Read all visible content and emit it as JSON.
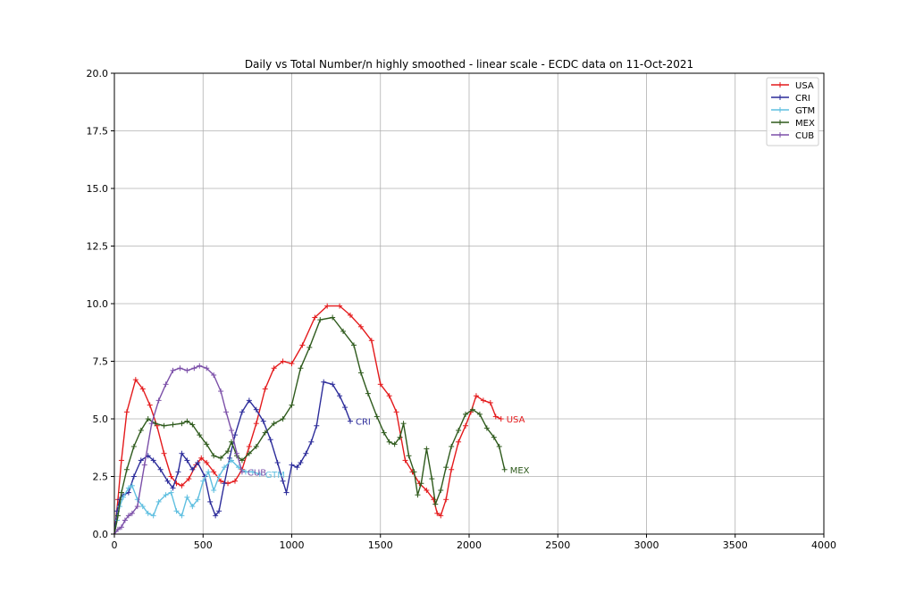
{
  "chart_data": {
    "type": "line",
    "title": "Daily vs Total Number/n highly smoothed - linear scale - ECDC data on 11-Oct-2021",
    "xlabel": "",
    "ylabel": "",
    "xlim": [
      0,
      4000
    ],
    "ylim": [
      0,
      20
    ],
    "xticks": [
      0,
      500,
      1000,
      1500,
      2000,
      2500,
      3000,
      3500,
      4000
    ],
    "yticks": [
      0.0,
      2.5,
      5.0,
      7.5,
      10.0,
      12.5,
      15.0,
      17.5,
      20.0
    ],
    "xtick_labels": [
      "0",
      "500",
      "1000",
      "1500",
      "2000",
      "2500",
      "3000",
      "3500",
      "4000"
    ],
    "ytick_labels": [
      "0.0",
      "2.5",
      "5.0",
      "7.5",
      "10.0",
      "12.5",
      "15.0",
      "17.5",
      "20.0"
    ],
    "grid": true,
    "legend_position": "top-right",
    "series": [
      {
        "name": "USA",
        "color": "#e41a1c",
        "end_label": "USA",
        "points": [
          [
            0,
            0
          ],
          [
            20,
            1.5
          ],
          [
            40,
            3.2
          ],
          [
            70,
            5.3
          ],
          [
            120,
            6.7
          ],
          [
            160,
            6.3
          ],
          [
            200,
            5.6
          ],
          [
            240,
            4.7
          ],
          [
            280,
            3.5
          ],
          [
            320,
            2.5
          ],
          [
            350,
            2.2
          ],
          [
            380,
            2.1
          ],
          [
            420,
            2.4
          ],
          [
            460,
            3.0
          ],
          [
            490,
            3.3
          ],
          [
            520,
            3.1
          ],
          [
            560,
            2.7
          ],
          [
            600,
            2.3
          ],
          [
            640,
            2.2
          ],
          [
            680,
            2.3
          ],
          [
            720,
            2.8
          ],
          [
            760,
            3.8
          ],
          [
            800,
            4.8
          ],
          [
            850,
            6.3
          ],
          [
            900,
            7.2
          ],
          [
            950,
            7.5
          ],
          [
            1000,
            7.4
          ],
          [
            1060,
            8.2
          ],
          [
            1130,
            9.4
          ],
          [
            1200,
            9.9
          ],
          [
            1270,
            9.9
          ],
          [
            1330,
            9.5
          ],
          [
            1390,
            9.0
          ],
          [
            1450,
            8.4
          ],
          [
            1500,
            6.5
          ],
          [
            1550,
            6.0
          ],
          [
            1590,
            5.3
          ],
          [
            1640,
            3.2
          ],
          [
            1680,
            2.7
          ],
          [
            1720,
            2.2
          ],
          [
            1760,
            1.9
          ],
          [
            1800,
            1.5
          ],
          [
            1820,
            0.9
          ],
          [
            1840,
            0.8
          ],
          [
            1870,
            1.5
          ],
          [
            1900,
            2.8
          ],
          [
            1940,
            4.0
          ],
          [
            1980,
            4.7
          ],
          [
            2010,
            5.3
          ],
          [
            2040,
            6.0
          ],
          [
            2080,
            5.8
          ],
          [
            2120,
            5.7
          ],
          [
            2150,
            5.1
          ],
          [
            2180,
            5.0
          ]
        ]
      },
      {
        "name": "CRI",
        "color": "#2c2c9a",
        "end_label": "CRI",
        "points": [
          [
            0,
            0
          ],
          [
            15,
            1.0
          ],
          [
            30,
            1.5
          ],
          [
            50,
            1.7
          ],
          [
            80,
            1.8
          ],
          [
            110,
            2.5
          ],
          [
            150,
            3.2
          ],
          [
            190,
            3.4
          ],
          [
            220,
            3.2
          ],
          [
            260,
            2.8
          ],
          [
            300,
            2.3
          ],
          [
            330,
            2.0
          ],
          [
            360,
            2.7
          ],
          [
            380,
            3.5
          ],
          [
            410,
            3.2
          ],
          [
            440,
            2.8
          ],
          [
            470,
            3.1
          ],
          [
            510,
            2.5
          ],
          [
            540,
            1.4
          ],
          [
            570,
            0.8
          ],
          [
            590,
            1.0
          ],
          [
            620,
            2.2
          ],
          [
            650,
            3.3
          ],
          [
            680,
            4.3
          ],
          [
            720,
            5.3
          ],
          [
            760,
            5.8
          ],
          [
            800,
            5.4
          ],
          [
            840,
            4.9
          ],
          [
            880,
            4.1
          ],
          [
            920,
            3.1
          ],
          [
            950,
            2.3
          ],
          [
            970,
            1.8
          ],
          [
            1000,
            3.0
          ],
          [
            1030,
            2.9
          ],
          [
            1050,
            3.1
          ],
          [
            1080,
            3.5
          ],
          [
            1110,
            4.0
          ],
          [
            1140,
            4.7
          ],
          [
            1180,
            6.6
          ],
          [
            1230,
            6.5
          ],
          [
            1270,
            6.0
          ],
          [
            1300,
            5.5
          ],
          [
            1330,
            4.9
          ]
        ]
      },
      {
        "name": "GTM",
        "color": "#5fbfe0",
        "end_label": "GTM",
        "points": [
          [
            0,
            0
          ],
          [
            15,
            0.6
          ],
          [
            30,
            1.2
          ],
          [
            50,
            1.6
          ],
          [
            80,
            2.0
          ],
          [
            100,
            2.1
          ],
          [
            130,
            1.5
          ],
          [
            160,
            1.2
          ],
          [
            190,
            0.9
          ],
          [
            220,
            0.8
          ],
          [
            250,
            1.4
          ],
          [
            290,
            1.7
          ],
          [
            320,
            1.8
          ],
          [
            350,
            1.0
          ],
          [
            380,
            0.8
          ],
          [
            410,
            1.6
          ],
          [
            440,
            1.2
          ],
          [
            470,
            1.5
          ],
          [
            500,
            2.3
          ],
          [
            530,
            2.7
          ],
          [
            560,
            1.9
          ],
          [
            590,
            2.5
          ],
          [
            620,
            2.9
          ],
          [
            660,
            3.2
          ],
          [
            700,
            2.9
          ],
          [
            740,
            2.7
          ],
          [
            780,
            2.7
          ],
          [
            820,
            2.6
          ]
        ]
      },
      {
        "name": "MEX",
        "color": "#2e5a1c",
        "end_label": "MEX",
        "points": [
          [
            0,
            0
          ],
          [
            20,
            0.8
          ],
          [
            40,
            1.8
          ],
          [
            70,
            2.8
          ],
          [
            110,
            3.8
          ],
          [
            150,
            4.5
          ],
          [
            190,
            5.0
          ],
          [
            230,
            4.8
          ],
          [
            280,
            4.7
          ],
          [
            330,
            4.75
          ],
          [
            380,
            4.8
          ],
          [
            410,
            4.9
          ],
          [
            440,
            4.75
          ],
          [
            480,
            4.3
          ],
          [
            520,
            3.9
          ],
          [
            560,
            3.4
          ],
          [
            600,
            3.3
          ],
          [
            640,
            3.6
          ],
          [
            660,
            4.0
          ],
          [
            690,
            3.4
          ],
          [
            720,
            3.2
          ],
          [
            760,
            3.5
          ],
          [
            800,
            3.8
          ],
          [
            850,
            4.4
          ],
          [
            900,
            4.8
          ],
          [
            950,
            5.0
          ],
          [
            1000,
            5.6
          ],
          [
            1050,
            7.2
          ],
          [
            1100,
            8.1
          ],
          [
            1160,
            9.3
          ],
          [
            1230,
            9.4
          ],
          [
            1290,
            8.8
          ],
          [
            1350,
            8.2
          ],
          [
            1390,
            7.0
          ],
          [
            1430,
            6.1
          ],
          [
            1480,
            5.1
          ],
          [
            1520,
            4.4
          ],
          [
            1550,
            4.0
          ],
          [
            1580,
            3.9
          ],
          [
            1610,
            4.2
          ],
          [
            1630,
            4.8
          ],
          [
            1660,
            3.4
          ],
          [
            1690,
            2.7
          ],
          [
            1710,
            1.7
          ],
          [
            1730,
            2.2
          ],
          [
            1760,
            3.7
          ],
          [
            1790,
            2.4
          ],
          [
            1810,
            1.3
          ],
          [
            1840,
            1.9
          ],
          [
            1870,
            2.9
          ],
          [
            1900,
            3.8
          ],
          [
            1940,
            4.5
          ],
          [
            1980,
            5.2
          ],
          [
            2020,
            5.4
          ],
          [
            2060,
            5.2
          ],
          [
            2100,
            4.6
          ],
          [
            2140,
            4.2
          ],
          [
            2170,
            3.8
          ],
          [
            2200,
            2.8
          ]
        ]
      },
      {
        "name": "CUB",
        "color": "#7b4fa8",
        "end_label": "CUB",
        "points": [
          [
            0,
            0
          ],
          [
            20,
            0.2
          ],
          [
            40,
            0.3
          ],
          [
            60,
            0.6
          ],
          [
            80,
            0.8
          ],
          [
            100,
            0.9
          ],
          [
            130,
            1.2
          ],
          [
            170,
            3.0
          ],
          [
            210,
            4.8
          ],
          [
            250,
            5.8
          ],
          [
            290,
            6.5
          ],
          [
            330,
            7.1
          ],
          [
            370,
            7.2
          ],
          [
            410,
            7.1
          ],
          [
            450,
            7.2
          ],
          [
            480,
            7.3
          ],
          [
            520,
            7.2
          ],
          [
            560,
            6.9
          ],
          [
            600,
            6.2
          ],
          [
            630,
            5.3
          ],
          [
            660,
            4.5
          ],
          [
            690,
            3.5
          ],
          [
            720,
            2.7
          ]
        ]
      }
    ]
  }
}
